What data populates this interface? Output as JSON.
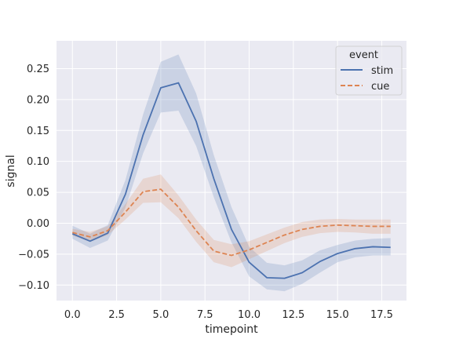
{
  "chart_data": {
    "type": "line",
    "xlabel": "timepoint",
    "ylabel": "signal",
    "xlim": [
      -0.9,
      18.9
    ],
    "ylim": [
      -0.125,
      0.295
    ],
    "xticks": [
      0.0,
      2.5,
      5.0,
      7.5,
      10.0,
      12.5,
      15.0,
      17.5
    ],
    "xtick_labels": [
      "0.0",
      "2.5",
      "5.0",
      "7.5",
      "10.0",
      "12.5",
      "15.0",
      "17.5"
    ],
    "yticks": [
      -0.1,
      -0.05,
      0.0,
      0.05,
      0.1,
      0.15,
      0.2,
      0.25
    ],
    "ytick_labels": [
      "−0.10",
      "−0.05",
      "0.00",
      "0.05",
      "0.10",
      "0.15",
      "0.20",
      "0.25"
    ],
    "grid": true,
    "legend": {
      "title": "event",
      "placement": "top-right"
    },
    "x": [
      0,
      1,
      2,
      3,
      4,
      5,
      6,
      7,
      8,
      9,
      10,
      11,
      12,
      13,
      14,
      15,
      16,
      17,
      18
    ],
    "series": [
      {
        "name": "stim",
        "color": "#4c72b0",
        "style": "solid",
        "values": [
          -0.017,
          -0.029,
          -0.016,
          0.047,
          0.143,
          0.219,
          0.227,
          0.165,
          0.072,
          -0.01,
          -0.063,
          -0.088,
          -0.089,
          -0.08,
          -0.062,
          -0.049,
          -0.041,
          -0.038,
          -0.039
        ],
        "ci_low": [
          -0.025,
          -0.04,
          -0.028,
          0.025,
          0.113,
          0.179,
          0.182,
          0.125,
          0.042,
          -0.031,
          -0.086,
          -0.107,
          -0.11,
          -0.098,
          -0.08,
          -0.063,
          -0.055,
          -0.052,
          -0.052
        ],
        "ci_high": [
          -0.004,
          -0.017,
          -0.003,
          0.07,
          0.176,
          0.261,
          0.273,
          0.21,
          0.11,
          0.026,
          -0.038,
          -0.064,
          -0.068,
          -0.06,
          -0.044,
          -0.035,
          -0.028,
          -0.025,
          -0.024
        ]
      },
      {
        "name": "cue",
        "color": "#dd8452",
        "style": "dashed",
        "values": [
          -0.015,
          -0.022,
          -0.012,
          0.018,
          0.051,
          0.055,
          0.026,
          -0.012,
          -0.045,
          -0.052,
          -0.043,
          -0.031,
          -0.019,
          -0.01,
          -0.005,
          -0.003,
          -0.004,
          -0.005,
          -0.005
        ],
        "ci_low": [
          -0.02,
          -0.03,
          -0.019,
          0.006,
          0.033,
          0.034,
          0.008,
          -0.03,
          -0.063,
          -0.071,
          -0.058,
          -0.045,
          -0.032,
          -0.022,
          -0.016,
          -0.014,
          -0.015,
          -0.017,
          -0.017
        ],
        "ci_high": [
          -0.009,
          -0.014,
          -0.005,
          0.031,
          0.072,
          0.079,
          0.045,
          0.006,
          -0.027,
          -0.034,
          -0.029,
          -0.018,
          -0.007,
          0.002,
          0.006,
          0.007,
          0.006,
          0.006,
          0.006
        ]
      }
    ]
  }
}
